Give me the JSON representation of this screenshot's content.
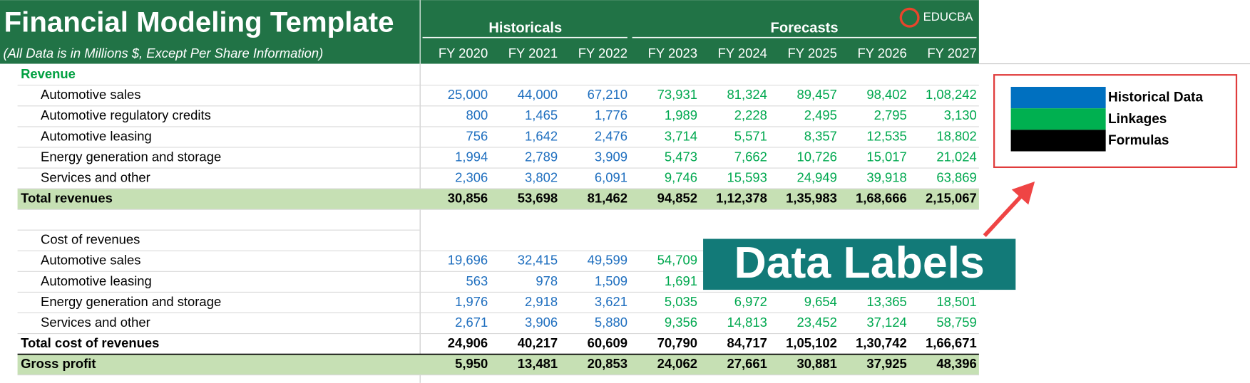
{
  "header": {
    "title": "Financial Modeling Template",
    "subtitle": "(All Data is in Millions $, Except Per Share Information)",
    "historicals": "Historicals",
    "forecasts": "Forecasts",
    "logo": "EDUCBA",
    "columns": [
      "FY 2020",
      "FY 2021",
      "FY 2022",
      "FY 2023",
      "FY 2024",
      "FY 2025",
      "FY 2026",
      "FY 2027"
    ]
  },
  "table": {
    "rows": [
      {
        "label": "Revenue"
      },
      {
        "label": "Automotive sales",
        "values": [
          "25,000",
          "44,000",
          "67,210",
          "73,931",
          "81,324",
          "89,457",
          "98,402",
          "1,08,242"
        ]
      },
      {
        "label": "Automotive regulatory credits",
        "values": [
          "800",
          "1,465",
          "1,776",
          "1,989",
          "2,228",
          "2,495",
          "2,795",
          "3,130"
        ]
      },
      {
        "label": "Automotive leasing",
        "values": [
          "756",
          "1,642",
          "2,476",
          "3,714",
          "5,571",
          "8,357",
          "12,535",
          "18,802"
        ]
      },
      {
        "label": "Energy generation and storage",
        "values": [
          "1,994",
          "2,789",
          "3,909",
          "5,473",
          "7,662",
          "10,726",
          "15,017",
          "21,024"
        ]
      },
      {
        "label": "Services and other",
        "values": [
          "2,306",
          "3,802",
          "6,091",
          "9,746",
          "15,593",
          "24,949",
          "39,918",
          "63,869"
        ]
      },
      {
        "label": "Total revenues",
        "values": [
          "30,856",
          "53,698",
          "81,462",
          "94,852",
          "1,12,378",
          "1,35,983",
          "1,68,666",
          "2,15,067"
        ]
      },
      {
        "label": "Cost of revenues"
      },
      {
        "label": "Automotive sales",
        "values": [
          "19,696",
          "32,415",
          "49,599",
          "54,709",
          null,
          null,
          null,
          null
        ]
      },
      {
        "label": "Automotive leasing",
        "values": [
          "563",
          "978",
          "1,509",
          "1,691",
          null,
          null,
          null,
          null
        ]
      },
      {
        "label": "Energy generation and storage",
        "values": [
          "1,976",
          "2,918",
          "3,621",
          "5,035",
          "6,972",
          "9,654",
          "13,365",
          "18,501"
        ]
      },
      {
        "label": "Services and other",
        "values": [
          "2,671",
          "3,906",
          "5,880",
          "9,356",
          "14,813",
          "23,452",
          "37,124",
          "58,759"
        ]
      },
      {
        "label": "Total cost of revenues",
        "values": [
          "24,906",
          "40,217",
          "60,609",
          "70,790",
          "84,717",
          "1,05,102",
          "1,30,742",
          "1,66,671"
        ]
      },
      {
        "label": "Gross profit",
        "values": [
          "5,950",
          "13,481",
          "20,853",
          "24,062",
          "27,661",
          "30,881",
          "37,925",
          "48,396"
        ]
      }
    ]
  },
  "legend": {
    "items": [
      "Historical Data",
      "Linkages",
      "Formulas"
    ]
  },
  "callout": "Data Labels"
}
